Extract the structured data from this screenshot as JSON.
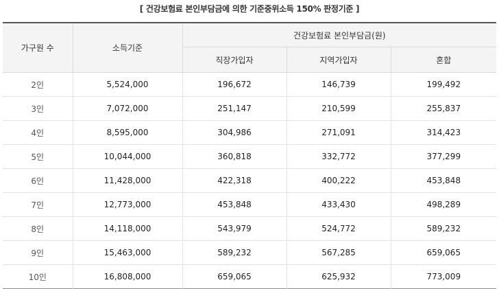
{
  "caption": "[ 건강보험료 본인부담금에 의한 기준중위소득 150% 판정기준 ]",
  "headers": {
    "household": "가구원 수",
    "income": "소득기준",
    "premium_group": "건강보험료 본인부담금(원)",
    "employee": "직장가입자",
    "regional": "지역가입자",
    "mixed": "혼합"
  },
  "rows": [
    {
      "household": "2인",
      "income": "5,524,000",
      "employee": "196,672",
      "regional": "146,739",
      "mixed": "199,492"
    },
    {
      "household": "3인",
      "income": "7,072,000",
      "employee": "251,147",
      "regional": "210,599",
      "mixed": "255,837"
    },
    {
      "household": "4인",
      "income": "8,595,000",
      "employee": "304,986",
      "regional": "271,091",
      "mixed": "314,423"
    },
    {
      "household": "5인",
      "income": "10,044,000",
      "employee": "360,818",
      "regional": "332,772",
      "mixed": "377,299"
    },
    {
      "household": "6인",
      "income": "11,428,000",
      "employee": "422,318",
      "regional": "400,222",
      "mixed": "453,848"
    },
    {
      "household": "7인",
      "income": "12,773,000",
      "employee": "453,848",
      "regional": "433,430",
      "mixed": "498,289"
    },
    {
      "household": "8인",
      "income": "14,118,000",
      "employee": "543,979",
      "regional": "524,772",
      "mixed": "589,232"
    },
    {
      "household": "9인",
      "income": "15,463,000",
      "employee": "589,232",
      "regional": "567,285",
      "mixed": "659,065"
    },
    {
      "household": "10인",
      "income": "16,808,000",
      "employee": "659,065",
      "regional": "625,932",
      "mixed": "773,009"
    }
  ]
}
